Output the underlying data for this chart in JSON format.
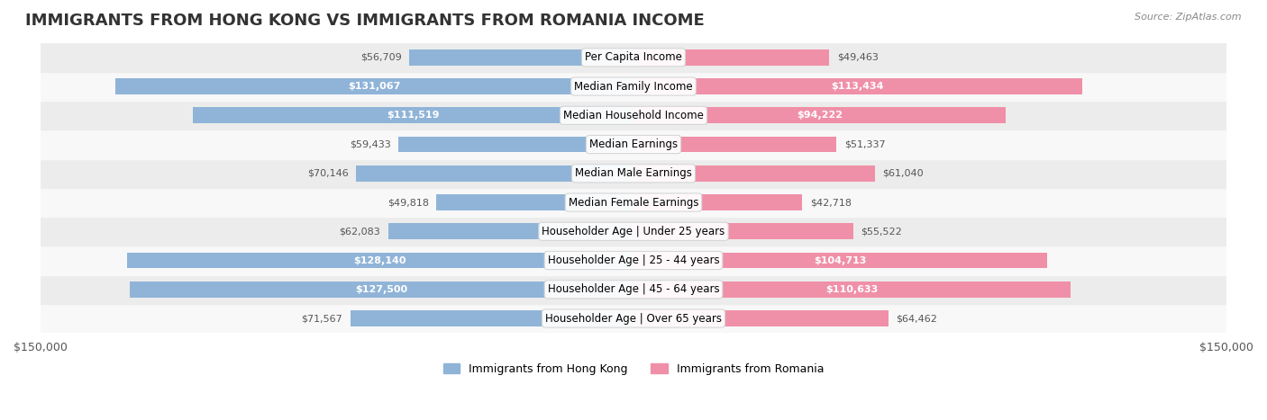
{
  "title": "IMMIGRANTS FROM HONG KONG VS IMMIGRANTS FROM ROMANIA INCOME",
  "source": "Source: ZipAtlas.com",
  "categories": [
    "Per Capita Income",
    "Median Family Income",
    "Median Household Income",
    "Median Earnings",
    "Median Male Earnings",
    "Median Female Earnings",
    "Householder Age | Under 25 years",
    "Householder Age | 25 - 44 years",
    "Householder Age | 45 - 64 years",
    "Householder Age | Over 65 years"
  ],
  "hong_kong_values": [
    56709,
    131067,
    111519,
    59433,
    70146,
    49818,
    62083,
    128140,
    127500,
    71567
  ],
  "romania_values": [
    49463,
    113434,
    94222,
    51337,
    61040,
    42718,
    55522,
    104713,
    110633,
    64462
  ],
  "hong_kong_color": "#90b4d8",
  "romania_color": "#f090a8",
  "hong_kong_full_color": "#6090c8",
  "romania_full_color": "#e8608a",
  "bar_bg_color": "#f0f0f0",
  "row_bg_colors": [
    "#f8f8f8",
    "#ececec"
  ],
  "max_value": 150000,
  "legend_hk": "Immigrants from Hong Kong",
  "legend_ro": "Immigrants from Romania",
  "title_fontsize": 15,
  "label_fontsize": 9,
  "value_fontsize": 8.5
}
